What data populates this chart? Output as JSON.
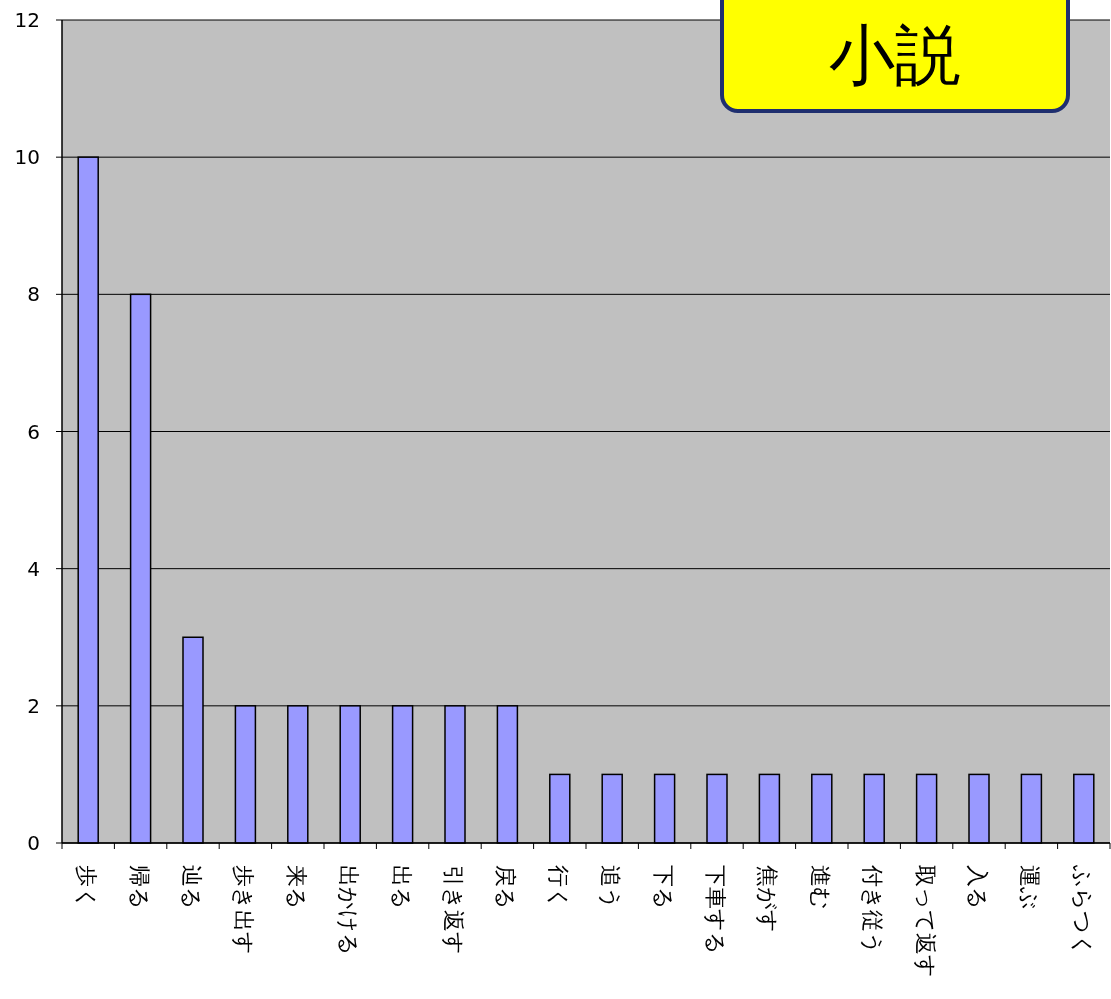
{
  "chart_data": {
    "type": "bar",
    "title": "小説",
    "categories": [
      "歩く",
      "帰る",
      "辿る",
      "歩き出す",
      "来る",
      "出かける",
      "出る",
      "引き返す",
      "戻る",
      "行く",
      "追う",
      "下る",
      "下車する",
      "焦がす",
      "進む",
      "付き従う",
      "取って返す",
      "入る",
      "運ぶ",
      "ふらつく"
    ],
    "values": [
      10,
      8,
      3,
      2,
      2,
      2,
      2,
      2,
      2,
      1,
      1,
      1,
      1,
      1,
      1,
      1,
      1,
      1,
      1,
      1
    ],
    "color": "#9999ff",
    "ylim": [
      0,
      12
    ],
    "yticks": [
      0,
      2,
      4,
      6,
      8,
      10,
      12
    ],
    "grid": "y"
  }
}
